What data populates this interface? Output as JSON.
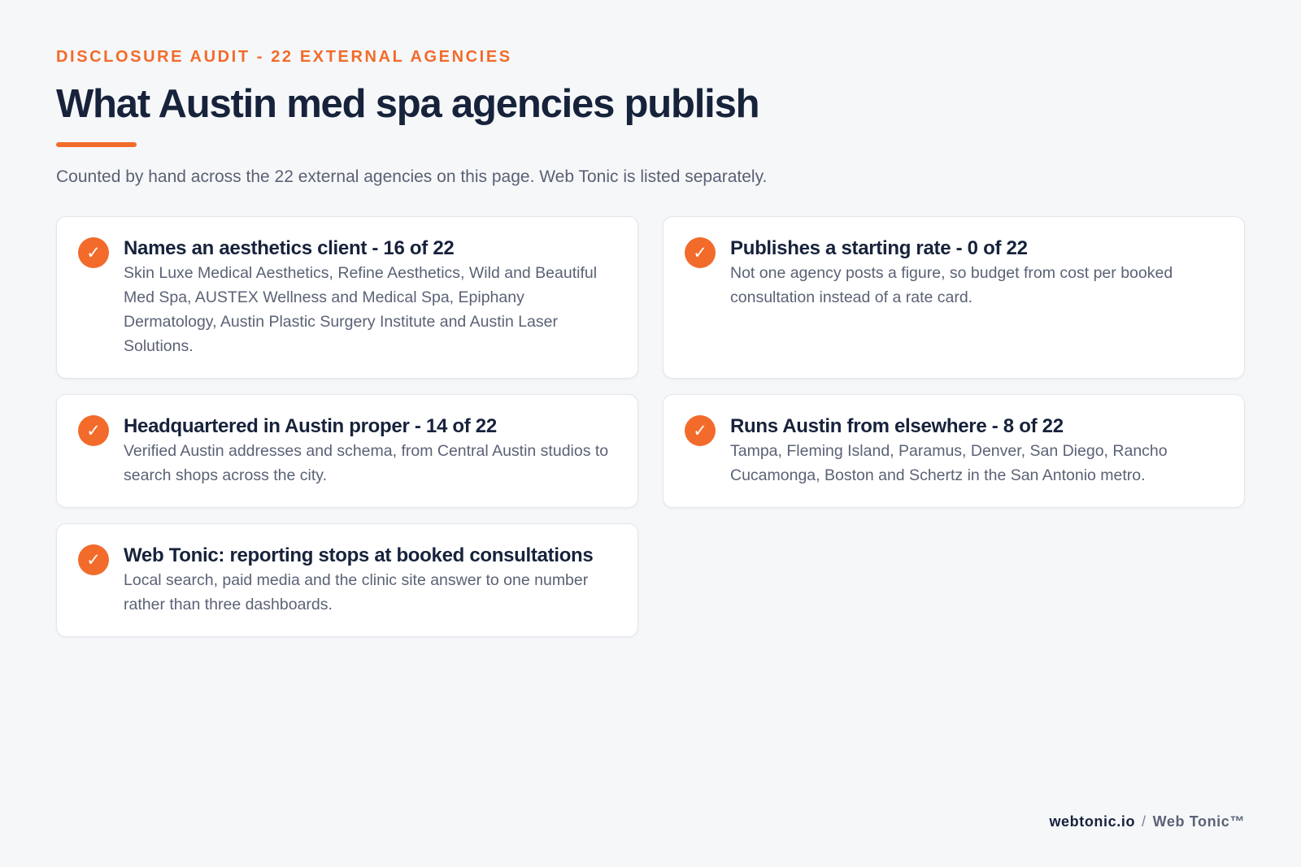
{
  "header": {
    "eyebrow": "DISCLOSURE AUDIT - 22 EXTERNAL AGENCIES",
    "title": "What Austin med spa agencies publish",
    "subtitle": "Counted by hand across the 22 external agencies on this page. Web Tonic is listed separately."
  },
  "cards": [
    {
      "icon": "check-icon",
      "glyph": "✓",
      "title": "Names an aesthetics client - 16 of 22",
      "text": "Skin Luxe Medical Aesthetics, Refine Aesthetics, Wild and Beautiful Med Spa, AUSTEX Wellness and Medical Spa, Epiphany Dermatology, Austin Plastic Surgery Institute and Austin Laser Solutions."
    },
    {
      "icon": "check-icon",
      "glyph": "✓",
      "title": "Publishes a starting rate - 0 of 22",
      "text": "Not one agency posts a figure, so budget from cost per booked consultation instead of a rate card."
    },
    {
      "icon": "check-icon",
      "glyph": "✓",
      "title": "Headquartered in Austin proper - 14 of 22",
      "text": "Verified Austin addresses and schema, from Central Austin studios to search shops across the city."
    },
    {
      "icon": "check-icon",
      "glyph": "✓",
      "title": "Runs Austin from elsewhere - 8 of 22",
      "text": "Tampa, Fleming Island, Paramus, Denver, San Diego, Rancho Cucamonga, Boston and Schertz in the San Antonio metro."
    },
    {
      "icon": "check-icon",
      "glyph": "✓",
      "title": "Web Tonic: reporting stops at booked consultations",
      "text": "Local search, paid media and the clinic site answer to one number rather than three dashboards."
    }
  ],
  "footer": {
    "domain": "webtonic.io",
    "separator": "/",
    "brand": "Web Tonic™"
  },
  "colors": {
    "accent": "#f26b2b",
    "heading": "#17223b",
    "body_text": "#5a6275",
    "background": "#f6f7f9",
    "card": "#ffffff"
  }
}
